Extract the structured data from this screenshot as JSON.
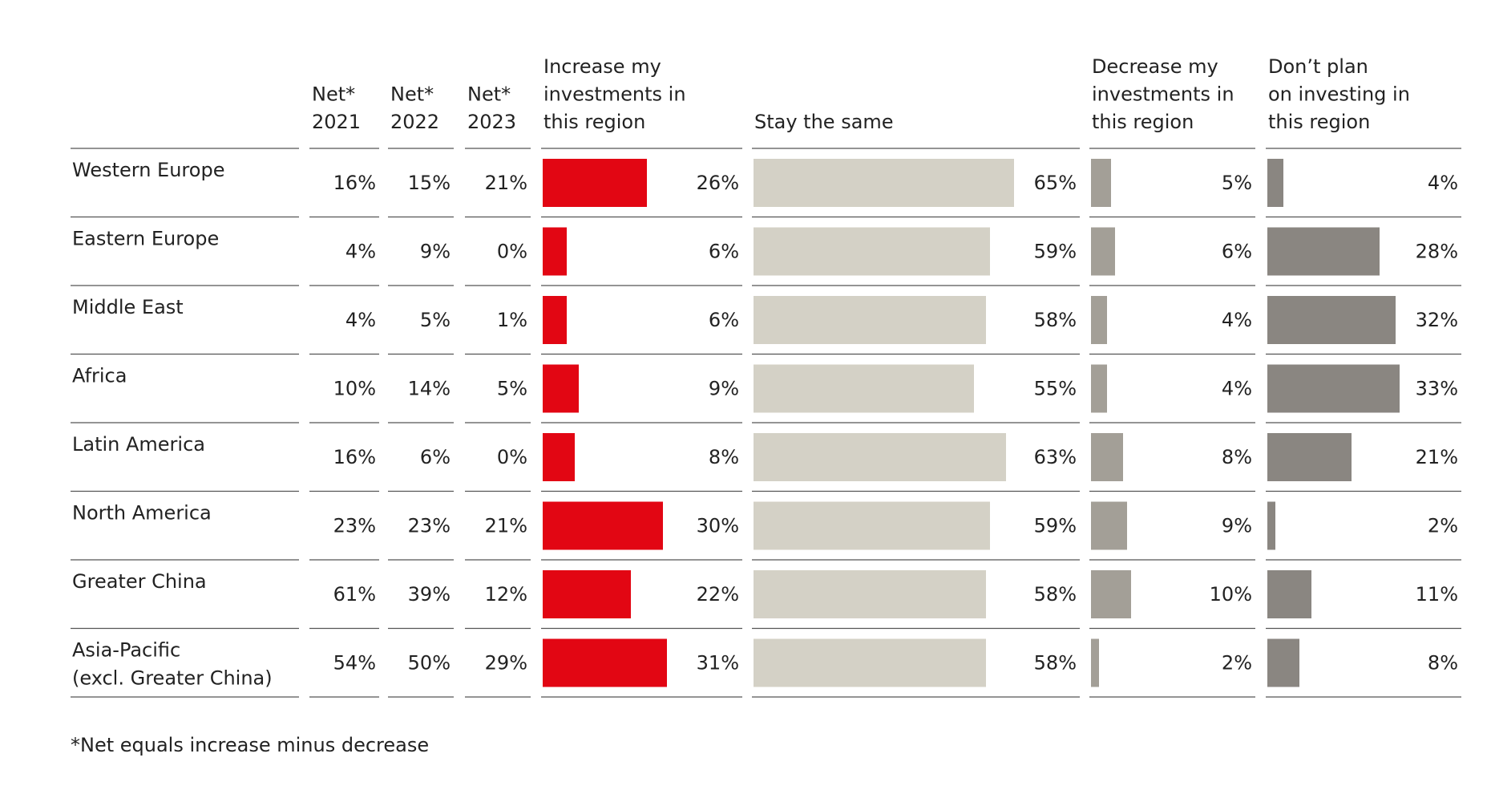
{
  "chart_data": {
    "type": "table",
    "columns": [
      {
        "key": "net2021",
        "header": [
          "Net*",
          "2021"
        ]
      },
      {
        "key": "net2022",
        "header": [
          "Net*",
          "2022"
        ]
      },
      {
        "key": "net2023",
        "header": [
          "Net*",
          "2023"
        ]
      },
      {
        "key": "increase",
        "header": [
          "Increase my",
          "investments in",
          "this region"
        ]
      },
      {
        "key": "same",
        "header": [
          "Stay the same"
        ]
      },
      {
        "key": "decrease",
        "header": [
          "Decrease my",
          "investments in",
          "this region"
        ]
      },
      {
        "key": "noplan",
        "header": [
          "Don’t plan",
          "on investing in",
          "this region"
        ]
      }
    ],
    "rows": [
      {
        "region": [
          "Western Europe"
        ],
        "net2021": 16,
        "net2022": 15,
        "net2023": 21,
        "increase": 26,
        "same": 65,
        "decrease": 5,
        "noplan": 4
      },
      {
        "region": [
          "Eastern Europe"
        ],
        "net2021": 4,
        "net2022": 9,
        "net2023": 0,
        "increase": 6,
        "same": 59,
        "decrease": 6,
        "noplan": 28
      },
      {
        "region": [
          "Middle East"
        ],
        "net2021": 4,
        "net2022": 5,
        "net2023": 1,
        "increase": 6,
        "same": 58,
        "decrease": 4,
        "noplan": 32
      },
      {
        "region": [
          "Africa"
        ],
        "net2021": 10,
        "net2022": 14,
        "net2023": 5,
        "increase": 9,
        "same": 55,
        "decrease": 4,
        "noplan": 33
      },
      {
        "region": [
          "Latin America"
        ],
        "net2021": 16,
        "net2022": 6,
        "net2023": 0,
        "increase": 8,
        "same": 63,
        "decrease": 8,
        "noplan": 21
      },
      {
        "region": [
          "North America"
        ],
        "net2021": 23,
        "net2022": 23,
        "net2023": 21,
        "increase": 30,
        "same": 59,
        "decrease": 9,
        "noplan": 2
      },
      {
        "region": [
          "Greater China"
        ],
        "net2021": 61,
        "net2022": 39,
        "net2023": 12,
        "increase": 22,
        "same": 58,
        "decrease": 10,
        "noplan": 11
      },
      {
        "region": [
          "Asia-Pacific",
          "(excl. Greater China)"
        ],
        "net2021": 54,
        "net2022": 50,
        "net2023": 29,
        "increase": 31,
        "same": 58,
        "decrease": 2,
        "noplan": 8
      }
    ],
    "unit": "%",
    "footnote": "*Net equals increase minus decrease",
    "colors": {
      "increase": "#e20613",
      "same": "#d4d1c6",
      "decrease": "#a39f97",
      "noplan": "#8a8681",
      "rule": "#555555",
      "text": "#222222"
    }
  }
}
